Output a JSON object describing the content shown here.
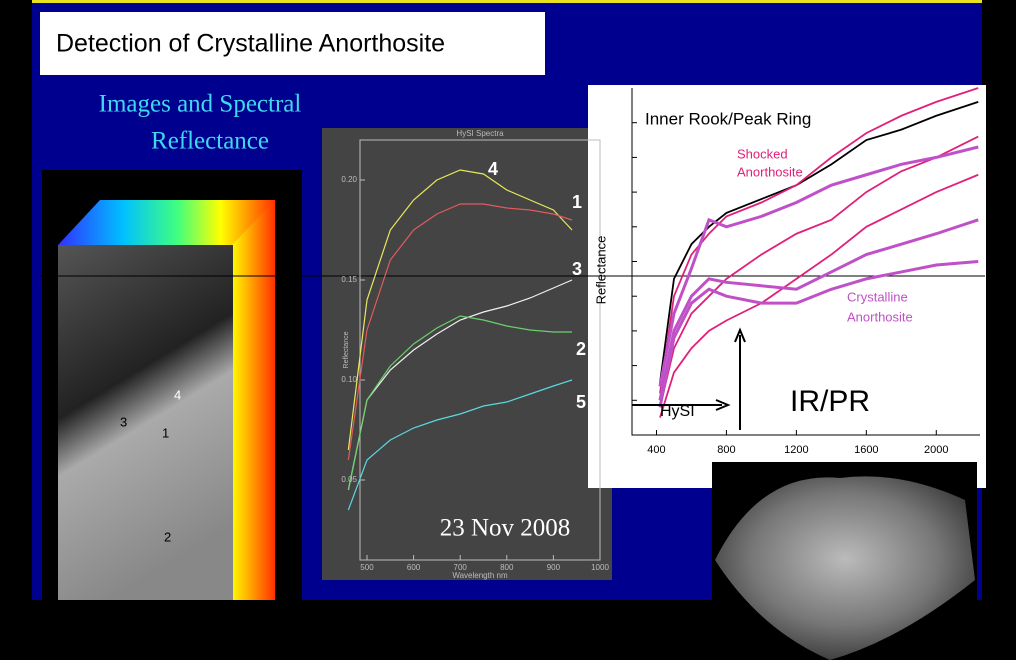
{
  "title": "Detection of Crystalline Anorthosite",
  "subtitle": [
    "Images and Spectral",
    "Reflectance"
  ],
  "image_labels": [
    "4",
    "3",
    "1",
    "2"
  ],
  "hysi": {
    "type": "line",
    "title": "HySI Spectra",
    "x_label": "Wavelength nm",
    "y_label": "Reflectance",
    "date": "23 Nov 2008",
    "xlim": [
      485,
      1000
    ],
    "ylim": [
      0.01,
      0.22
    ],
    "xticks": [
      500,
      600,
      700,
      800,
      900,
      1000
    ],
    "yticks": [
      0.05,
      {
        "value": 0.1,
        "label": "0.10"
      },
      0.15,
      {
        "value": 0.2,
        "label": "0.20"
      }
    ],
    "x": [
      460,
      500,
      550,
      600,
      650,
      700,
      750,
      800,
      850,
      900,
      940
    ],
    "series": [
      {
        "label": "4",
        "color": "#e8e85a",
        "values": [
          0.065,
          0.14,
          0.175,
          0.19,
          0.2,
          0.205,
          0.203,
          0.195,
          0.19,
          0.185,
          0.175
        ]
      },
      {
        "label": "1",
        "color": "#e05a5a",
        "values": [
          0.06,
          0.125,
          0.16,
          0.175,
          0.183,
          0.188,
          0.188,
          0.186,
          0.185,
          0.183,
          0.18
        ]
      },
      {
        "label": "3",
        "color": "#f0f0f0",
        "values": [
          0.045,
          0.09,
          0.105,
          0.115,
          0.123,
          0.13,
          0.134,
          0.137,
          0.141,
          0.146,
          0.15
        ]
      },
      {
        "label": "2",
        "color": "#6ad06a",
        "values": [
          0.045,
          0.09,
          0.107,
          0.118,
          0.126,
          0.132,
          0.13,
          0.127,
          0.125,
          0.124,
          0.124
        ]
      },
      {
        "label": "5",
        "color": "#5ad8e0",
        "values": [
          0.035,
          0.06,
          0.07,
          0.076,
          0.08,
          0.083,
          0.087,
          0.089,
          0.093,
          0.097,
          0.1
        ]
      }
    ]
  },
  "irpr": {
    "type": "line",
    "y_label": "Reflectance",
    "annotations": [
      "Inner Rook/Peak Ring",
      "Shocked",
      "Anorthosite",
      "Crystalline",
      "Anorthosite",
      "HySI",
      "IR/PR"
    ],
    "xlim": [
      260,
      2250
    ],
    "ylim": [
      0,
      100
    ],
    "xticks": [
      400,
      800,
      1200,
      1600,
      2000
    ],
    "x": [
      420,
      500,
      600,
      700,
      800,
      1000,
      1200,
      1400,
      1600,
      1800,
      2000,
      2240
    ],
    "series": [
      {
        "color": "#000000",
        "values": [
          15,
          45,
          55,
          60,
          64,
          68,
          72,
          78,
          85,
          88,
          92,
          96
        ]
      },
      {
        "color": "#e0207a",
        "values": [
          12,
          40,
          52,
          58,
          63,
          67,
          72,
          80,
          87,
          92,
          96,
          100
        ]
      },
      {
        "color": "#e0207a",
        "values": [
          8,
          25,
          35,
          40,
          45,
          52,
          58,
          62,
          70,
          76,
          80,
          86
        ]
      },
      {
        "color": "#e0207a",
        "values": [
          5,
          18,
          25,
          30,
          33,
          38,
          45,
          52,
          60,
          65,
          70,
          75
        ]
      },
      {
        "color": "#c050c8",
        "values": [
          14,
          35,
          48,
          62,
          60,
          63,
          67,
          72,
          75,
          78,
          80,
          83
        ]
      },
      {
        "color": "#c050c8",
        "values": [
          10,
          30,
          40,
          45,
          44,
          43,
          42,
          47,
          52,
          55,
          58,
          62
        ]
      },
      {
        "color": "#c050c8",
        "values": [
          8,
          28,
          38,
          42,
          40,
          38,
          38,
          42,
          45,
          47,
          49,
          50
        ]
      }
    ]
  }
}
